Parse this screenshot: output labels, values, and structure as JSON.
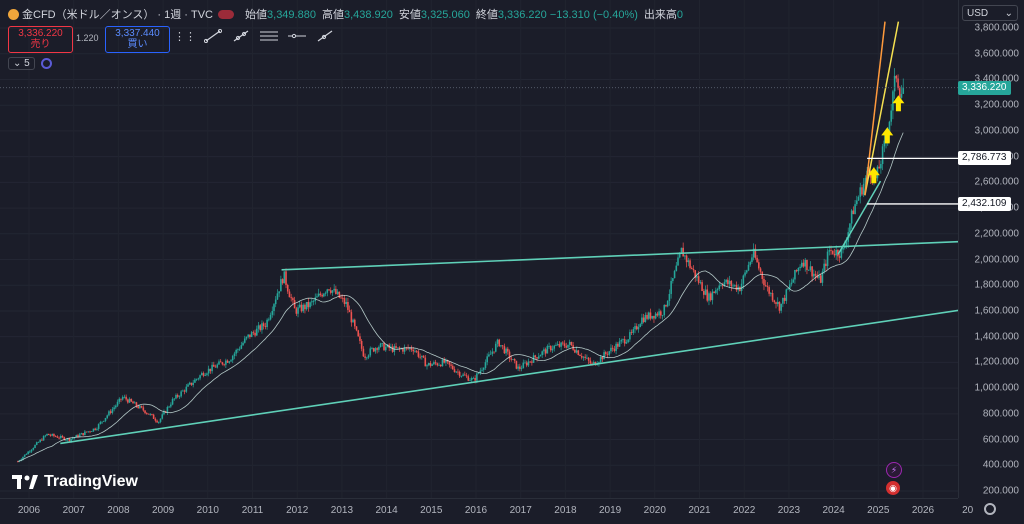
{
  "header": {
    "title": "金CFD（米ドル／オンス）",
    "interval": "· 1週 · TVC",
    "ohlc": [
      {
        "label": "始値",
        "value": "3,349.880"
      },
      {
        "label": "高値",
        "value": "3,438.920"
      },
      {
        "label": "安値",
        "value": "3,325.060"
      },
      {
        "label": "終値",
        "value": "3,336.220"
      },
      {
        "label": "",
        "value": "−13.310 (−0.40%)"
      },
      {
        "label": "出来高",
        "value": "0"
      }
    ]
  },
  "trade": {
    "sell_price": "3,336.220",
    "sell_label": "売り",
    "spread": "1.220",
    "buy_price": "3,337.440",
    "buy_label": "買い"
  },
  "indicators": {
    "count": "5"
  },
  "currency": "USD",
  "logo_text": "TradingView",
  "colors": {
    "background": "#1b1d29",
    "up": "#26a69a",
    "down": "#ef5350",
    "trendline": "#5fd0b8",
    "fan_yellow": "#f5e050",
    "fan_orange": "#ff9a3c",
    "arrow": "#ffe600"
  },
  "chart_data": {
    "type": "candlestick",
    "price_axis": [
      "3,800.000",
      "3,600.000",
      "3,400.000",
      "3,200.000",
      "3,000.000",
      "2,800.000",
      "2,600.000",
      "2,400.000",
      "2,200.000",
      "2,000.000",
      "1,800.000",
      "1,600.000",
      "1,400.000",
      "1,200.000",
      "1,000.000",
      "800.000",
      "600.000",
      "400.000",
      "200.000"
    ],
    "time_axis": [
      "2006",
      "2007",
      "2008",
      "2009",
      "2010",
      "2011",
      "2012",
      "2013",
      "2014",
      "2015",
      "2016",
      "2017",
      "2018",
      "2019",
      "2020",
      "2021",
      "2022",
      "2023",
      "2024",
      "2025",
      "2026",
      "20"
    ],
    "last_price": "3,336.220",
    "horizontal_levels": [
      "2,786.773",
      "2,432.109"
    ],
    "price_path": [
      [
        2005.75,
        430
      ],
      [
        2006.4,
        640
      ],
      [
        2006.9,
        600
      ],
      [
        2007.5,
        690
      ],
      [
        2008.1,
        930
      ],
      [
        2008.6,
        820
      ],
      [
        2008.9,
        740
      ],
      [
        2009.2,
        900
      ],
      [
        2009.9,
        1120
      ],
      [
        2010.5,
        1230
      ],
      [
        2010.9,
        1400
      ],
      [
        2011.3,
        1500
      ],
      [
        2011.7,
        1880
      ],
      [
        2011.95,
        1600
      ],
      [
        2012.3,
        1650
      ],
      [
        2012.7,
        1790
      ],
      [
        2013.1,
        1650
      ],
      [
        2013.35,
        1400
      ],
      [
        2013.5,
        1250
      ],
      [
        2013.8,
        1330
      ],
      [
        2014.2,
        1300
      ],
      [
        2014.6,
        1310
      ],
      [
        2014.9,
        1180
      ],
      [
        2015.3,
        1200
      ],
      [
        2015.7,
        1100
      ],
      [
        2015.95,
        1060
      ],
      [
        2016.5,
        1360
      ],
      [
        2016.95,
        1150
      ],
      [
        2017.4,
        1260
      ],
      [
        2017.7,
        1320
      ],
      [
        2018.1,
        1340
      ],
      [
        2018.6,
        1180
      ],
      [
        2018.95,
        1280
      ],
      [
        2019.5,
        1420
      ],
      [
        2019.7,
        1540
      ],
      [
        2020.2,
        1600
      ],
      [
        2020.6,
        2070
      ],
      [
        2020.95,
        1850
      ],
      [
        2021.2,
        1700
      ],
      [
        2021.5,
        1830
      ],
      [
        2021.9,
        1780
      ],
      [
        2022.2,
        2050
      ],
      [
        2022.5,
        1780
      ],
      [
        2022.8,
        1630
      ],
      [
        2023.3,
        2000
      ],
      [
        2023.7,
        1830
      ],
      [
        2023.9,
        2070
      ],
      [
        2024.2,
        2050
      ],
      [
        2024.45,
        2400
      ],
      [
        2024.8,
        2700
      ],
      [
        2024.95,
        2620
      ],
      [
        2025.15,
        2900
      ],
      [
        2025.3,
        3200
      ],
      [
        2025.4,
        3450
      ],
      [
        2025.5,
        3290
      ],
      [
        2025.56,
        3336
      ]
    ],
    "trendlines": [
      {
        "name": "upper",
        "from": [
          2011.65,
          1920
        ],
        "to": [
          2026.9,
          2140
        ]
      },
      {
        "name": "lower",
        "from": [
          2006.7,
          570
        ],
        "to": [
          2026.9,
          1610
        ]
      }
    ],
    "fan_lines": [
      {
        "from": [
          2024.1,
          2040
        ],
        "to": [
          2025.05,
          2610
        ]
      },
      {
        "from": [
          2024.7,
          2500
        ],
        "to": [
          2025.45,
          3850
        ]
      },
      {
        "from": [
          2024.7,
          2500
        ],
        "to": [
          2025.15,
          3850
        ]
      }
    ],
    "arrows": [
      [
        2024.9,
        2640
      ],
      [
        2025.2,
        2950
      ],
      [
        2025.45,
        3200
      ]
    ]
  }
}
